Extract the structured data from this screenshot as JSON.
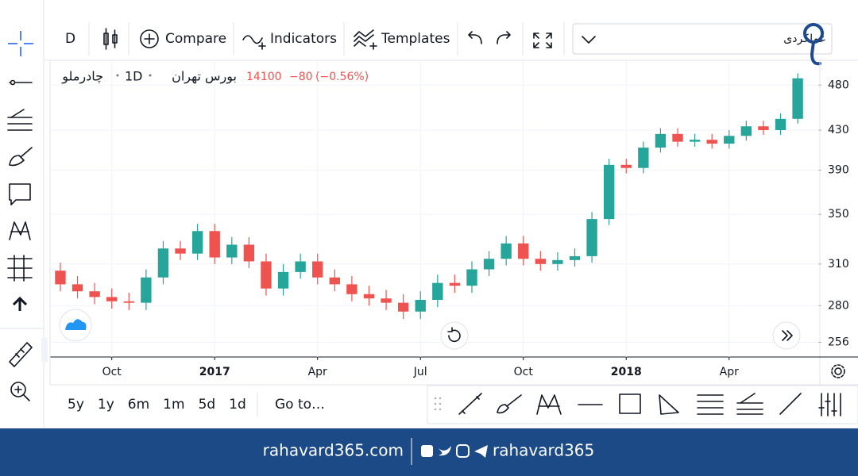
{
  "toolbar": {
    "interval": "D",
    "compare": "Compare",
    "indicators": "Indicators",
    "templates": "Templates",
    "symbol_search": "عملکردی"
  },
  "chart_data": {
    "type": "candlestick",
    "symbol": "چادرملو",
    "interval": "1D",
    "exchange": "بورس تهران",
    "last_price": 14100,
    "change": {
      "value": -80,
      "label": "−80"
    },
    "change_percent": {
      "value": -0.56,
      "label": "(−0.56%)"
    },
    "x": [
      -1.5,
      -1,
      -0.5,
      0,
      0.5,
      1,
      1.5,
      2,
      2.5,
      3,
      3.5,
      4,
      4.5,
      5,
      5.5,
      6,
      6.5,
      7,
      7.5,
      8,
      8.5,
      9,
      9.5,
      10,
      10.5,
      11,
      11.5,
      12,
      12.5,
      13,
      13.5,
      14,
      14.5,
      15,
      15.5,
      16,
      16.5,
      17,
      17.5,
      18,
      18.5,
      19,
      19.5,
      20
    ],
    "open": [
      305,
      295,
      290,
      286,
      283,
      282,
      300,
      322,
      318,
      336,
      315,
      325,
      312,
      292,
      304,
      312,
      300,
      295,
      288,
      285,
      282,
      276,
      284,
      296,
      294,
      306,
      314,
      326,
      314,
      310,
      313,
      316,
      346,
      395,
      392,
      412,
      426,
      418,
      420,
      416,
      424,
      434,
      430,
      442
    ],
    "high": [
      311,
      301,
      296,
      292,
      289,
      306,
      328,
      328,
      342,
      342,
      331,
      331,
      318,
      310,
      318,
      318,
      306,
      301,
      294,
      291,
      288,
      290,
      302,
      302,
      312,
      320,
      332,
      332,
      320,
      319,
      322,
      352,
      401,
      401,
      418,
      432,
      432,
      426,
      426,
      430,
      440,
      440,
      448,
      494
    ],
    "low": [
      290,
      285,
      281,
      278,
      277,
      277,
      295,
      313,
      313,
      310,
      310,
      307,
      287,
      287,
      299,
      295,
      290,
      283,
      280,
      277,
      271,
      271,
      279,
      289,
      289,
      301,
      309,
      309,
      305,
      305,
      308,
      311,
      341,
      387,
      387,
      407,
      413,
      413,
      411,
      411,
      419,
      425,
      425,
      437
    ],
    "close": [
      295,
      290,
      286,
      283,
      282,
      300,
      322,
      318,
      336,
      315,
      325,
      312,
      292,
      304,
      312,
      300,
      295,
      288,
      285,
      282,
      276,
      284,
      296,
      294,
      306,
      314,
      326,
      314,
      310,
      313,
      316,
      346,
      395,
      392,
      412,
      426,
      418,
      420,
      416,
      424,
      434,
      430,
      442,
      488
    ],
    "up_color": "#26a69a",
    "down_color": "#ef5350",
    "log_scale": true,
    "grid": true,
    "ylim": [
      247,
      509
    ],
    "yticks": [
      256,
      280,
      310,
      350,
      390,
      430,
      480
    ],
    "xlim": [
      -1.8,
      20.6
    ],
    "xticks": [
      {
        "value": 0,
        "label": "Oct"
      },
      {
        "value": 3,
        "label": "2017"
      },
      {
        "value": 6,
        "label": "Apr"
      },
      {
        "value": 9,
        "label": "Jul"
      },
      {
        "value": 12,
        "label": "Oct"
      },
      {
        "value": 15,
        "label": "2018"
      },
      {
        "value": 18,
        "label": "Apr"
      }
    ]
  },
  "range_buttons": [
    "5y",
    "1y",
    "6m",
    "1m",
    "5d",
    "1d"
  ],
  "goto": "Go to…",
  "footer": {
    "site": "rahavard365.com",
    "handle": "rahavard365"
  }
}
